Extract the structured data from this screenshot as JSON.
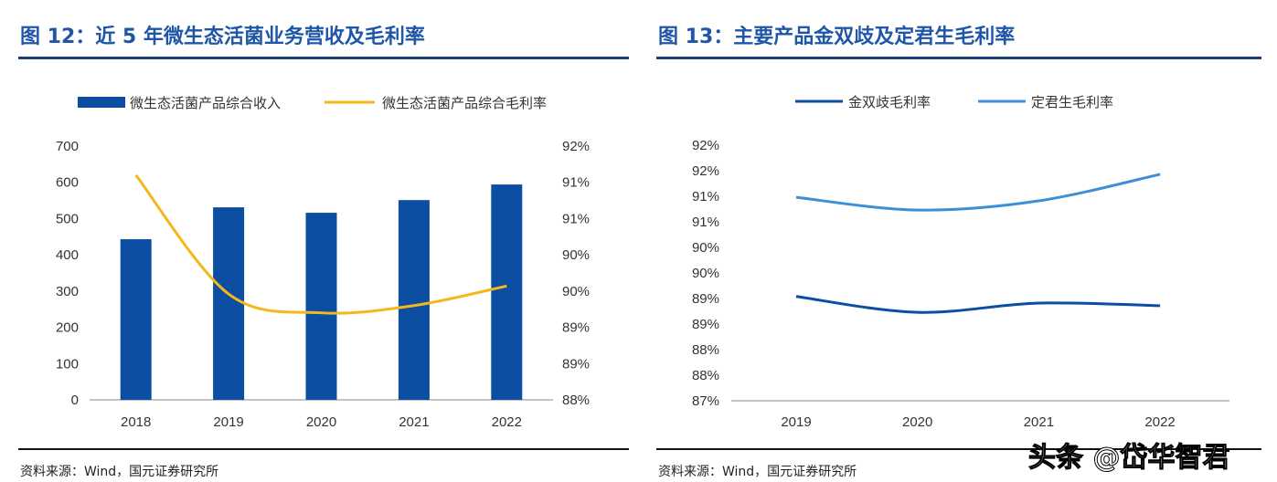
{
  "watermark": "头条 @岱华智君",
  "chart_data": [
    {
      "type": "bar+line",
      "title": "图 12：近 5 年微生态活菌业务营收及毛利率",
      "source": "资料来源：Wind，国元证券研究所",
      "categories": [
        "2018",
        "2019",
        "2020",
        "2021",
        "2022"
      ],
      "series": [
        {
          "name": "微生态活菌产品综合收入",
          "type": "bar",
          "axis": "left",
          "color": "#0b4ea2",
          "values": [
            443,
            531,
            516,
            551,
            594
          ]
        },
        {
          "name": "微生态活菌产品综合毛利率",
          "type": "line",
          "axis": "right",
          "color": "#f5b81c",
          "values": [
            91.1,
            89.46,
            89.2,
            89.3,
            89.57
          ]
        }
      ],
      "left_axis": {
        "ylim": [
          0,
          700
        ],
        "ticks": [
          "0",
          "100",
          "200",
          "300",
          "400",
          "500",
          "600",
          "700"
        ]
      },
      "right_axis": {
        "ylim": [
          88,
          91.5
        ],
        "ticks": [
          "88%",
          "89%",
          "89%",
          "90%",
          "90%",
          "91%",
          "91%",
          "92%"
        ]
      },
      "legend": "top",
      "grid": false
    },
    {
      "type": "line",
      "title": "图 13：主要产品金双歧及定君生毛利率",
      "source": "资料来源：Wind，国元证券研究所",
      "categories": [
        "2019",
        "2020",
        "2021",
        "2022"
      ],
      "series": [
        {
          "name": "金双歧毛利率",
          "color": "#0b4ea2",
          "values": [
            89.04,
            88.73,
            88.91,
            88.86
          ]
        },
        {
          "name": "定君生毛利率",
          "color": "#3d8fd6",
          "values": [
            90.98,
            90.73,
            90.91,
            91.43
          ]
        }
      ],
      "ylim": [
        87,
        92
      ],
      "ticks": [
        "87%",
        "88%",
        "88%",
        "89%",
        "89%",
        "90%",
        "90%",
        "91%",
        "91%",
        "92%",
        "92%"
      ],
      "legend": "top",
      "grid": false
    }
  ]
}
